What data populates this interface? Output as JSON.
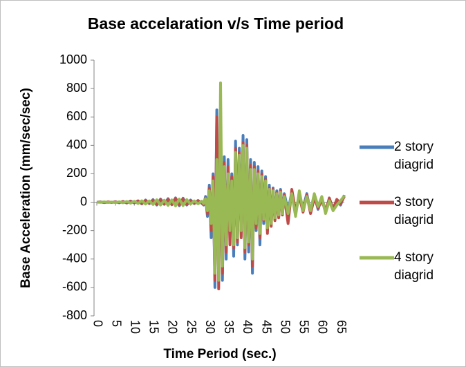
{
  "chart_data": {
    "type": "line",
    "title": "Base accelaration v/s Time period",
    "x_label": "Time Period (sec.)",
    "y_label": "Base Acceleration (mm/sec/sec)",
    "x": [
      0,
      1,
      2,
      3,
      4,
      5,
      6,
      7,
      8,
      9,
      10,
      11,
      12,
      13,
      14,
      15,
      16,
      17,
      18,
      19,
      20,
      21,
      22,
      23,
      24,
      25,
      26,
      27,
      28,
      28.5,
      29,
      29.5,
      30,
      30.5,
      31,
      31.5,
      32,
      32.5,
      33,
      33.5,
      34,
      34.5,
      35,
      35.5,
      36,
      36.5,
      37,
      37.5,
      38,
      38.5,
      39,
      39.5,
      40,
      40.5,
      41,
      41.5,
      42,
      42.5,
      43,
      43.5,
      44,
      44.5,
      45,
      45.5,
      46,
      46.5,
      47,
      47.5,
      48,
      48.5,
      49,
      49.5,
      50,
      51,
      52,
      53,
      54,
      55,
      56,
      57,
      58,
      59,
      60,
      61,
      62,
      63,
      64,
      65,
      66
    ],
    "series": [
      {
        "name": "2 story diagrid",
        "color": "#4a7ebb",
        "values": [
          0,
          2,
          -3,
          1,
          -2,
          3,
          -4,
          5,
          -6,
          8,
          -5,
          10,
          -12,
          15,
          -10,
          18,
          -20,
          22,
          -15,
          25,
          -18,
          30,
          -25,
          28,
          -20,
          15,
          -10,
          12,
          -8,
          -20,
          40,
          -100,
          120,
          -250,
          200,
          -600,
          650,
          -300,
          500,
          -550,
          320,
          -400,
          300,
          -250,
          200,
          -380,
          430,
          -300,
          380,
          -200,
          470,
          -400,
          440,
          -350,
          300,
          -500,
          280,
          -200,
          250,
          -300,
          220,
          -150,
          180,
          -200,
          120,
          -150,
          100,
          -120,
          80,
          -100,
          90,
          -80,
          60,
          -60,
          70,
          -80,
          50,
          -40,
          60,
          -70,
          50,
          -50,
          30,
          -60,
          20,
          -40,
          10,
          -20,
          50
        ]
      },
      {
        "name": "3 story diagrid",
        "color": "#be4b48",
        "values": [
          0,
          1,
          -2,
          2,
          -1,
          2,
          -3,
          4,
          -5,
          6,
          -4,
          8,
          -10,
          12,
          -8,
          15,
          -15,
          18,
          -12,
          20,
          -15,
          25,
          -20,
          22,
          -15,
          12,
          -8,
          10,
          -6,
          -15,
          30,
          -80,
          100,
          -200,
          180,
          -550,
          600,
          -610,
          550,
          -500,
          280,
          -350,
          250,
          -300,
          180,
          -320,
          380,
          -280,
          350,
          -250,
          420,
          -350,
          400,
          -300,
          260,
          -450,
          250,
          -180,
          220,
          -250,
          200,
          -130,
          160,
          -220,
          100,
          -170,
          90,
          -130,
          70,
          -110,
          80,
          -90,
          50,
          -150,
          90,
          -60,
          40,
          -70,
          50,
          -80,
          30,
          -40,
          20,
          -70,
          30,
          -50,
          20,
          -10,
          40
        ]
      },
      {
        "name": "4 story diagrid",
        "color": "#98b954",
        "values": [
          0,
          -1,
          2,
          -2,
          1,
          -3,
          3,
          -4,
          5,
          -7,
          6,
          -9,
          10,
          -13,
          9,
          -16,
          17,
          -20,
          14,
          -22,
          16,
          -26,
          22,
          -24,
          18,
          -13,
          9,
          -11,
          7,
          -10,
          25,
          -60,
          80,
          -150,
          150,
          -500,
          300,
          -550,
          840,
          -450,
          250,
          -300,
          200,
          -200,
          150,
          -300,
          350,
          -250,
          330,
          -200,
          400,
          -320,
          380,
          -280,
          230,
          -400,
          230,
          -150,
          200,
          -220,
          180,
          -120,
          150,
          -180,
          90,
          -150,
          80,
          -110,
          60,
          -90,
          70,
          -80,
          40,
          -80,
          60,
          -100,
          80,
          -60,
          40,
          -60,
          60,
          -30,
          40,
          -80,
          10,
          -60,
          -20,
          10,
          45
        ]
      }
    ],
    "xlim": [
      0,
      66
    ],
    "xticks": [
      0,
      5,
      10,
      15,
      20,
      25,
      30,
      35,
      40,
      45,
      50,
      55,
      60,
      65
    ],
    "ylim": [
      -800,
      1000
    ],
    "yticks": [
      -800,
      -600,
      -400,
      -200,
      0,
      200,
      400,
      600,
      800,
      1000
    ],
    "grid": false,
    "legend": "right"
  }
}
